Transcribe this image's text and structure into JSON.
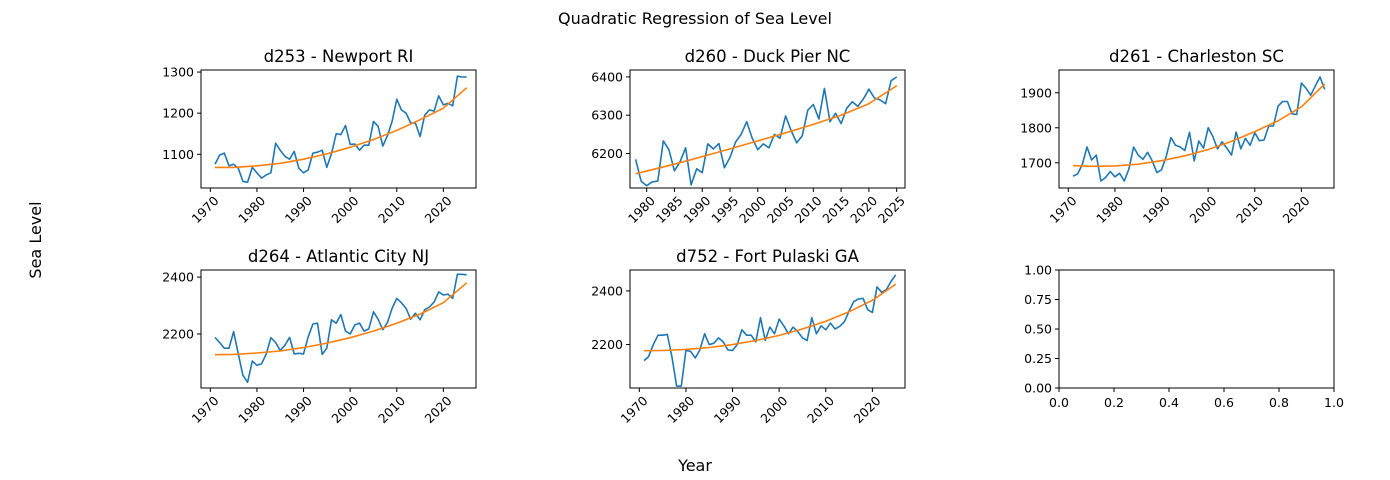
{
  "suptitle": "Quadratic Regression of Sea Level",
  "xlabel": "Year",
  "ylabel": "Sea Level",
  "colors": {
    "observed": "#1f77b4",
    "fit": "#ff7f0e",
    "axis": "#000000"
  },
  "chart_data": [
    {
      "type": "line",
      "title": "d253 - Newport RI",
      "xlim": [
        1968,
        2027
      ],
      "ylim": [
        1018,
        1305
      ],
      "xticks": [
        1970,
        1980,
        1990,
        2000,
        2010,
        2020
      ],
      "yticks": [
        1100,
        1200,
        1300
      ],
      "series": [
        {
          "x": [
            1971,
            1972,
            1973,
            1974,
            1975,
            1976,
            1977,
            1978,
            1979,
            1980,
            1981,
            1982,
            1983,
            1984,
            1985,
            1986,
            1987,
            1988,
            1989,
            1990,
            1991,
            1992,
            1993,
            1994,
            1995,
            1996,
            1997,
            1998,
            1999,
            2000,
            2001,
            2002,
            2003,
            2004,
            2005,
            2006,
            2007,
            2008,
            2009,
            2010,
            2011,
            2012,
            2013,
            2014,
            2015,
            2016,
            2017,
            2018,
            2019,
            2020,
            2021,
            2022,
            2023,
            2024,
            2025
          ],
          "y": [
            1076,
            1098,
            1103,
            1072,
            1076,
            1066,
            1034,
            1032,
            1068,
            1055,
            1042,
            1050,
            1055,
            1127,
            1110,
            1095,
            1088,
            1107,
            1066,
            1055,
            1062,
            1103,
            1105,
            1110,
            1068,
            1102,
            1150,
            1148,
            1170,
            1124,
            1125,
            1110,
            1122,
            1122,
            1180,
            1168,
            1120,
            1145,
            1180,
            1234,
            1208,
            1200,
            1176,
            1176,
            1143,
            1195,
            1208,
            1205,
            1242,
            1220,
            1224,
            1218,
            1290,
            1288,
            1288
          ]
        },
        {
          "x": [
            1971,
            1975,
            1980,
            1985,
            1990,
            1995,
            2000,
            2005,
            2010,
            2015,
            2020,
            2025
          ],
          "y": [
            1068,
            1068,
            1072,
            1078,
            1088,
            1101,
            1117,
            1136,
            1158,
            1184,
            1212,
            1262
          ]
        }
      ]
    },
    {
      "type": "line",
      "title": "d260 - Duck Pier NC",
      "xlim": [
        1977,
        2026.5
      ],
      "ylim": [
        6110,
        6418
      ],
      "xticks": [
        1980,
        1985,
        1990,
        1995,
        2000,
        2005,
        2010,
        2015,
        2020,
        2025
      ],
      "yticks": [
        6200,
        6300,
        6400
      ],
      "series": [
        {
          "x": [
            1978,
            1979,
            1980,
            1981,
            1982,
            1983,
            1984,
            1985,
            1986,
            1987,
            1988,
            1989,
            1990,
            1991,
            1992,
            1993,
            1994,
            1995,
            1996,
            1997,
            1998,
            1999,
            2000,
            2001,
            2002,
            2003,
            2004,
            2005,
            2006,
            2007,
            2008,
            2009,
            2010,
            2011,
            2012,
            2013,
            2014,
            2015,
            2016,
            2017,
            2018,
            2019,
            2020,
            2021,
            2022,
            2023,
            2024,
            2025
          ],
          "y": [
            6185,
            6128,
            6116,
            6126,
            6128,
            6233,
            6210,
            6155,
            6178,
            6215,
            6118,
            6160,
            6150,
            6225,
            6212,
            6226,
            6163,
            6190,
            6230,
            6250,
            6283,
            6240,
            6210,
            6225,
            6215,
            6250,
            6240,
            6298,
            6260,
            6228,
            6246,
            6313,
            6328,
            6290,
            6370,
            6283,
            6305,
            6278,
            6318,
            6335,
            6323,
            6342,
            6368,
            6345,
            6340,
            6330,
            6390,
            6400
          ]
        },
        {
          "x": [
            1978,
            1985,
            1990,
            1995,
            2000,
            2005,
            2010,
            2015,
            2020,
            2025
          ],
          "y": [
            6147,
            6172,
            6192,
            6212,
            6233,
            6254,
            6276,
            6300,
            6330,
            6377
          ]
        }
      ]
    },
    {
      "type": "line",
      "title": "d261 - Charleston SC",
      "xlim": [
        1968,
        2027
      ],
      "ylim": [
        1628,
        1965
      ],
      "xticks": [
        1970,
        1980,
        1990,
        2000,
        2010,
        2020
      ],
      "yticks": [
        1700,
        1800,
        1900
      ],
      "series": [
        {
          "x": [
            1971,
            1972,
            1973,
            1974,
            1975,
            1976,
            1977,
            1978,
            1979,
            1980,
            1981,
            1982,
            1983,
            1984,
            1985,
            1986,
            1987,
            1988,
            1989,
            1990,
            1991,
            1992,
            1993,
            1994,
            1995,
            1996,
            1997,
            1998,
            1999,
            2000,
            2001,
            2002,
            2003,
            2004,
            2005,
            2006,
            2007,
            2008,
            2009,
            2010,
            2011,
            2012,
            2013,
            2014,
            2015,
            2016,
            2017,
            2018,
            2019,
            2020,
            2021,
            2022,
            2023,
            2024,
            2025
          ],
          "y": [
            1662,
            1668,
            1695,
            1745,
            1708,
            1722,
            1648,
            1658,
            1675,
            1660,
            1670,
            1648,
            1682,
            1745,
            1722,
            1710,
            1730,
            1706,
            1672,
            1680,
            1718,
            1772,
            1750,
            1745,
            1735,
            1787,
            1705,
            1762,
            1742,
            1800,
            1775,
            1740,
            1760,
            1742,
            1722,
            1788,
            1740,
            1770,
            1750,
            1786,
            1763,
            1765,
            1805,
            1805,
            1862,
            1875,
            1875,
            1840,
            1838,
            1928,
            1913,
            1893,
            1920,
            1945,
            1910
          ]
        },
        {
          "x": [
            1971,
            1975,
            1980,
            1985,
            1990,
            1995,
            2000,
            2005,
            2010,
            2015,
            2020,
            2025
          ],
          "y": [
            1692,
            1690,
            1691,
            1696,
            1706,
            1720,
            1738,
            1761,
            1789,
            1820,
            1860,
            1925
          ]
        }
      ]
    },
    {
      "type": "line",
      "title": "d264 - Atlantic City NJ",
      "xlim": [
        1968,
        2027
      ],
      "ylim": [
        2010,
        2425
      ],
      "xticks": [
        1970,
        1980,
        1990,
        2000,
        2010,
        2020
      ],
      "yticks": [
        2200,
        2400
      ],
      "series": [
        {
          "x": [
            1971,
            1972,
            1973,
            1974,
            1975,
            1976,
            1977,
            1978,
            1979,
            1980,
            1981,
            1982,
            1983,
            1984,
            1985,
            1986,
            1987,
            1988,
            1989,
            1990,
            1991,
            1992,
            1993,
            1994,
            1995,
            1996,
            1997,
            1998,
            1999,
            2000,
            2001,
            2002,
            2003,
            2004,
            2005,
            2006,
            2007,
            2008,
            2009,
            2010,
            2011,
            2012,
            2013,
            2014,
            2015,
            2016,
            2017,
            2018,
            2019,
            2020,
            2021,
            2022,
            2023,
            2024,
            2025
          ],
          "y": [
            2188,
            2170,
            2150,
            2150,
            2208,
            2130,
            2055,
            2030,
            2105,
            2090,
            2095,
            2130,
            2187,
            2170,
            2142,
            2160,
            2188,
            2130,
            2132,
            2130,
            2190,
            2235,
            2238,
            2128,
            2150,
            2250,
            2238,
            2268,
            2210,
            2200,
            2232,
            2238,
            2210,
            2218,
            2278,
            2252,
            2215,
            2240,
            2290,
            2325,
            2310,
            2290,
            2252,
            2273,
            2250,
            2285,
            2295,
            2312,
            2348,
            2337,
            2340,
            2325,
            2410,
            2410,
            2408
          ]
        },
        {
          "x": [
            1971,
            1975,
            1980,
            1985,
            1990,
            1995,
            2000,
            2005,
            2010,
            2015,
            2020,
            2025
          ],
          "y": [
            2127,
            2128,
            2133,
            2140,
            2152,
            2168,
            2187,
            2210,
            2238,
            2270,
            2310,
            2380
          ]
        }
      ]
    },
    {
      "type": "line",
      "title": "d752 - Fort Pulaski GA",
      "xlim": [
        1968,
        2027
      ],
      "ylim": [
        2038,
        2478
      ],
      "xticks": [
        1970,
        1980,
        1990,
        2000,
        2010,
        2020
      ],
      "yticks": [
        2200,
        2400
      ],
      "series": [
        {
          "x": [
            1971,
            1972,
            1973,
            1974,
            1975,
            1976,
            1977,
            1978,
            1979,
            1980,
            1981,
            1982,
            1983,
            1984,
            1985,
            1986,
            1987,
            1988,
            1989,
            1990,
            1991,
            1992,
            1993,
            1994,
            1995,
            1996,
            1997,
            1998,
            1999,
            2000,
            2001,
            2002,
            2003,
            2004,
            2005,
            2006,
            2007,
            2008,
            2009,
            2010,
            2011,
            2012,
            2013,
            2014,
            2015,
            2016,
            2017,
            2018,
            2019,
            2020,
            2021,
            2022,
            2023,
            2024,
            2025
          ],
          "y": [
            2140,
            2155,
            2200,
            2235,
            2235,
            2238,
            2155,
            2045,
            2045,
            2178,
            2175,
            2150,
            2180,
            2240,
            2200,
            2205,
            2225,
            2210,
            2180,
            2178,
            2200,
            2255,
            2235,
            2235,
            2210,
            2300,
            2215,
            2265,
            2240,
            2295,
            2270,
            2240,
            2265,
            2248,
            2225,
            2215,
            2300,
            2240,
            2270,
            2255,
            2280,
            2258,
            2268,
            2285,
            2325,
            2360,
            2370,
            2372,
            2330,
            2320,
            2415,
            2395,
            2405,
            2435,
            2460
          ]
        },
        {
          "x": [
            1971,
            1975,
            1980,
            1985,
            1990,
            1995,
            2000,
            2005,
            2010,
            2015,
            2020,
            2025
          ],
          "y": [
            2177,
            2178,
            2182,
            2189,
            2200,
            2215,
            2234,
            2258,
            2287,
            2322,
            2365,
            2425
          ]
        }
      ]
    },
    {
      "type": "line",
      "title": "",
      "xlim": [
        0,
        1
      ],
      "ylim": [
        0,
        1
      ],
      "xticks": [
        "0.0",
        "0.2",
        "0.4",
        "0.6",
        "0.8",
        "1.0"
      ],
      "yticks": [
        "0.00",
        "0.25",
        "0.50",
        "0.75",
        "1.00"
      ],
      "series": []
    }
  ]
}
